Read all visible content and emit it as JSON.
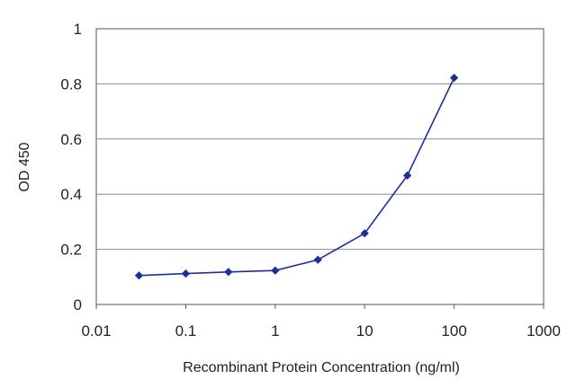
{
  "chart_data": {
    "type": "line",
    "title": "",
    "xlabel": "Recombinant Protein Concentration (ng/ml)",
    "ylabel": "OD 450",
    "x_scale": "log",
    "xlim": [
      0.01,
      1000
    ],
    "ylim": [
      0,
      1
    ],
    "x_ticks": [
      "0.01",
      "0.1",
      "1",
      "10",
      "100",
      "1000"
    ],
    "x_tick_values": [
      0.01,
      0.1,
      1,
      10,
      100,
      1000
    ],
    "y_ticks": [
      "0",
      "0.2",
      "0.4",
      "0.6",
      "0.8",
      "1"
    ],
    "y_tick_values": [
      0,
      0.2,
      0.4,
      0.6,
      0.8,
      1
    ],
    "grid": "horizontal",
    "legend": "none",
    "colors": {
      "series": "#1f2f99",
      "marker": "#1f2f99",
      "grid": "#8c8c8c",
      "axis": "#555555"
    },
    "series": [
      {
        "x": [
          0.03,
          0.1,
          0.3,
          1,
          3,
          10,
          30,
          100
        ],
        "y": [
          0.105,
          0.112,
          0.118,
          0.123,
          0.162,
          0.258,
          0.468,
          0.822
        ]
      }
    ]
  }
}
